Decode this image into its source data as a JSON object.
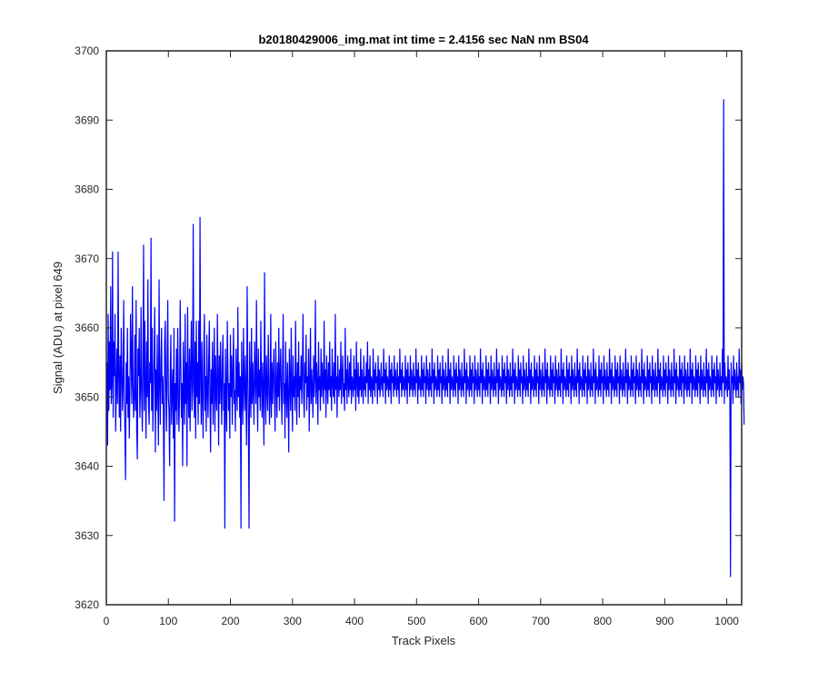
{
  "chart_data": {
    "type": "line",
    "title": "b20180429006_img.mat int time = 2.4156 sec  NaN nm BS04",
    "xlabel": "Track Pixels",
    "ylabel": "Signal (ADU) at pixel 649",
    "xlim": [
      0,
      1024
    ],
    "ylim": [
      3620,
      3700
    ],
    "xticks": [
      0,
      100,
      200,
      300,
      400,
      500,
      600,
      700,
      800,
      900,
      1000
    ],
    "yticks": [
      3620,
      3630,
      3640,
      3650,
      3660,
      3670,
      3680,
      3690,
      3700
    ],
    "grid": false,
    "line_color": "#0000ff",
    "series": [
      {
        "x_start": 1,
        "x_step": 1,
        "values": [
          3655,
          3643,
          3662,
          3648,
          3658,
          3651,
          3666,
          3649,
          3652,
          3671,
          3647,
          3658,
          3653,
          3662,
          3645,
          3651,
          3657,
          3649,
          3671,
          3653,
          3647,
          3656,
          3645,
          3660,
          3654,
          3648,
          3652,
          3664,
          3650,
          3645,
          3638,
          3655,
          3649,
          3660,
          3647,
          3653,
          3644,
          3651,
          3662,
          3656,
          3649,
          3666,
          3652,
          3647,
          3650,
          3659,
          3648,
          3664,
          3645,
          3641,
          3657,
          3653,
          3660,
          3647,
          3651,
          3663,
          3650,
          3645,
          3654,
          3672,
          3648,
          3661,
          3652,
          3644,
          3658,
          3650,
          3667,
          3649,
          3646,
          3655,
          3652,
          3673,
          3648,
          3660,
          3645,
          3651,
          3656,
          3663,
          3642,
          3654,
          3648,
          3659,
          3650,
          3643,
          3667,
          3652,
          3646,
          3655,
          3660,
          3649,
          3653,
          3647,
          3635,
          3658,
          3661,
          3651,
          3645,
          3655,
          3664,
          3650,
          3648,
          3640,
          3653,
          3659,
          3646,
          3651,
          3654,
          3644,
          3660,
          3632,
          3652,
          3648,
          3657,
          3646,
          3660,
          3652,
          3645,
          3650,
          3664,
          3655,
          3647,
          3652,
          3640,
          3658,
          3651,
          3646,
          3662,
          3649,
          3655,
          3640,
          3663,
          3651,
          3647,
          3657,
          3645,
          3654,
          3661,
          3648,
          3651,
          3675,
          3652,
          3647,
          3658,
          3644,
          3661,
          3650,
          3655,
          3646,
          3661,
          3649,
          3676,
          3652,
          3646,
          3658,
          3650,
          3644,
          3656,
          3662,
          3648,
          3653,
          3645,
          3659,
          3651,
          3647,
          3655,
          3661,
          3650,
          3642,
          3654,
          3649,
          3658,
          3646,
          3652,
          3660,
          3645,
          3656,
          3650,
          3648,
          3662,
          3653,
          3643,
          3656,
          3649,
          3658,
          3652,
          3646,
          3655,
          3659,
          3648,
          3652,
          3631,
          3657,
          3650,
          3645,
          3661,
          3654,
          3648,
          3652,
          3644,
          3659,
          3650,
          3656,
          3646,
          3653,
          3660,
          3649,
          3651,
          3645,
          3657,
          3652,
          3648,
          3663,
          3650,
          3655,
          3647,
          3653,
          3631,
          3658,
          3651,
          3646,
          3660,
          3652,
          3648,
          3656,
          3650,
          3643,
          3666,
          3654,
          3646,
          3631,
          3658,
          3652,
          3647,
          3660,
          3649,
          3655,
          3651,
          3646,
          3658,
          3653,
          3649,
          3664,
          3651,
          3645,
          3657,
          3650,
          3654,
          3648,
          3661,
          3652,
          3647,
          3655,
          3650,
          3643,
          3668,
          3652,
          3646,
          3656,
          3651,
          3648,
          3659,
          3653,
          3646,
          3650,
          3662,
          3647,
          3655,
          3649,
          3653,
          3657,
          3650,
          3645,
          3658,
          3652,
          3647,
          3655,
          3650,
          3660,
          3648,
          3653,
          3657,
          3651,
          3646,
          3654,
          3662,
          3649,
          3652,
          3644,
          3658,
          3651,
          3647,
          3655,
          3650,
          3642,
          3657,
          3652,
          3648,
          3660,
          3651,
          3645,
          3656,
          3650,
          3653,
          3648,
          3661,
          3652,
          3646,
          3655,
          3650,
          3658,
          3647,
          3653,
          3651,
          3656,
          3649,
          3654,
          3662,
          3650,
          3647,
          3655,
          3652,
          3659,
          3648,
          3653,
          3650,
          3657,
          3645,
          3652,
          3660,
          3649,
          3654,
          3651,
          3647,
          3656,
          3650,
          3653,
          3664,
          3649,
          3655,
          3652,
          3646,
          3658,
          3651,
          3653,
          3648,
          3657,
          3650,
          3655,
          3652,
          3649,
          3661,
          3651,
          3654,
          3647,
          3656,
          3652,
          3649,
          3655,
          3651,
          3658,
          3650,
          3653,
          3648,
          3657,
          3652,
          3650,
          3655,
          3649,
          3662,
          3651,
          3653,
          3647,
          3656,
          3652,
          3650,
          3654,
          3651,
          3658,
          3649,
          3653,
          3656,
          3650,
          3652,
          3648,
          3660,
          3651,
          3654,
          3649,
          3656,
          3652,
          3650,
          3655,
          3651,
          3657,
          3649,
          3653,
          3652,
          3650,
          3656,
          3651,
          3654,
          3648,
          3658,
          3652,
          3650,
          3655,
          3649,
          3653,
          3651,
          3657,
          3650,
          3654,
          3652,
          3649,
          3656,
          3651,
          3653,
          3650,
          3655,
          3652,
          3658,
          3649,
          3654,
          3651,
          3656,
          3650,
          3653,
          3652,
          3649,
          3657,
          3651,
          3654,
          3650,
          3655,
          3652,
          3653,
          3649,
          3656,
          3651,
          3654,
          3650,
          3652,
          3655,
          3651,
          3653,
          3650,
          3657,
          3652,
          3654,
          3649,
          3655,
          3651,
          3653,
          3652,
          3650,
          3656,
          3651,
          3654,
          3649,
          3655,
          3652,
          3653,
          3650,
          3656,
          3651,
          3654,
          3652,
          3650,
          3655,
          3651,
          3653,
          3649,
          3657,
          3652,
          3654,
          3650,
          3655,
          3651,
          3653,
          3652,
          3650,
          3656,
          3651,
          3654,
          3649,
          3655,
          3652,
          3653,
          3650,
          3656,
          3651,
          3654,
          3652,
          3650,
          3655,
          3651,
          3653,
          3650,
          3657,
          3652,
          3654,
          3649,
          3655,
          3651,
          3653,
          3652,
          3650,
          3656,
          3651,
          3654,
          3650,
          3655,
          3652,
          3653,
          3649,
          3656,
          3651,
          3654,
          3652,
          3650,
          3655,
          3651,
          3653,
          3650,
          3657,
          3652,
          3654,
          3649,
          3655,
          3651,
          3653,
          3652,
          3650,
          3656,
          3651,
          3654,
          3650,
          3655,
          3652,
          3653,
          3649,
          3656,
          3651,
          3654,
          3652,
          3650,
          3655,
          3651,
          3653,
          3650,
          3657,
          3652,
          3654,
          3649,
          3655,
          3651,
          3653,
          3652,
          3650,
          3656,
          3651,
          3654,
          3650,
          3655,
          3652,
          3653,
          3649,
          3656,
          3651,
          3654,
          3652,
          3650,
          3655,
          3651,
          3653,
          3650,
          3657,
          3652,
          3654,
          3649,
          3655,
          3651,
          3653,
          3652,
          3650,
          3656,
          3651,
          3654,
          3650,
          3655,
          3652,
          3653,
          3649,
          3656,
          3651,
          3654,
          3652,
          3650,
          3655,
          3651,
          3653,
          3650,
          3657,
          3652,
          3654,
          3649,
          3655,
          3651,
          3653,
          3652,
          3650,
          3656,
          3651,
          3654,
          3650,
          3655,
          3652,
          3653,
          3649,
          3656,
          3651,
          3654,
          3652,
          3650,
          3655,
          3651,
          3653,
          3650,
          3657,
          3652,
          3654,
          3649,
          3655,
          3651,
          3653,
          3652,
          3650,
          3656,
          3651,
          3654,
          3650,
          3655,
          3652,
          3653,
          3649,
          3656,
          3651,
          3654,
          3652,
          3650,
          3655,
          3651,
          3653,
          3650,
          3657,
          3652,
          3654,
          3649,
          3655,
          3651,
          3653,
          3652,
          3650,
          3656,
          3651,
          3654,
          3650,
          3655,
          3652,
          3653,
          3649,
          3656,
          3651,
          3654,
          3652,
          3650,
          3655,
          3651,
          3653,
          3650,
          3657,
          3652,
          3654,
          3649,
          3655,
          3651,
          3653,
          3652,
          3650,
          3656,
          3651,
          3654,
          3650,
          3655,
          3652,
          3653,
          3649,
          3656,
          3651,
          3654,
          3652,
          3650,
          3655,
          3651,
          3653,
          3650,
          3657,
          3652,
          3654,
          3649,
          3655,
          3651,
          3653,
          3652,
          3650,
          3656,
          3651,
          3654,
          3650,
          3655,
          3652,
          3653,
          3649,
          3656,
          3651,
          3654,
          3652,
          3650,
          3655,
          3651,
          3653,
          3650,
          3657,
          3652,
          3654,
          3649,
          3655,
          3651,
          3653,
          3652,
          3650,
          3656,
          3651,
          3654,
          3650,
          3655,
          3652,
          3653,
          3649,
          3656,
          3651,
          3654,
          3652,
          3650,
          3655,
          3651,
          3653,
          3650,
          3657,
          3652,
          3654,
          3649,
          3655,
          3651,
          3653,
          3652,
          3650,
          3656,
          3651,
          3654,
          3650,
          3655,
          3652,
          3653,
          3649,
          3656,
          3651,
          3654,
          3652,
          3650,
          3655,
          3651,
          3653,
          3650,
          3657,
          3652,
          3654,
          3649,
          3655,
          3651,
          3653,
          3652,
          3650,
          3656,
          3651,
          3654,
          3650,
          3655,
          3652,
          3653,
          3649,
          3656,
          3651,
          3654,
          3652,
          3650,
          3655,
          3651,
          3653,
          3650,
          3657,
          3652,
          3654,
          3649,
          3655,
          3651,
          3653,
          3652,
          3650,
          3656,
          3651,
          3654,
          3650,
          3655,
          3652,
          3653,
          3649,
          3656,
          3651,
          3654,
          3652,
          3650,
          3655,
          3651,
          3653,
          3650,
          3657,
          3652,
          3654,
          3649,
          3655,
          3651,
          3653,
          3652,
          3650,
          3656,
          3651,
          3654,
          3650,
          3655,
          3652,
          3653,
          3649,
          3656,
          3651,
          3654,
          3652,
          3650,
          3655,
          3651,
          3653,
          3650,
          3657,
          3652,
          3654,
          3649,
          3655,
          3651,
          3653,
          3652,
          3650,
          3656,
          3651,
          3654,
          3650,
          3655,
          3652,
          3653,
          3649,
          3656,
          3651,
          3654,
          3652,
          3650,
          3655,
          3651,
          3653,
          3650,
          3657,
          3652,
          3654,
          3649,
          3655,
          3651,
          3653,
          3652,
          3650,
          3656,
          3651,
          3654,
          3650,
          3655,
          3652,
          3653,
          3649,
          3656,
          3651,
          3654,
          3652,
          3650,
          3655,
          3651,
          3653,
          3650,
          3657,
          3652,
          3654,
          3649,
          3655,
          3651,
          3653,
          3652,
          3650,
          3656,
          3651,
          3654,
          3650,
          3655,
          3652,
          3653,
          3649,
          3656,
          3651,
          3654,
          3652,
          3650,
          3655,
          3651,
          3653,
          3650,
          3657,
          3652,
          3654,
          3649,
          3655,
          3651,
          3653,
          3652,
          3650,
          3656,
          3651,
          3654,
          3650,
          3655,
          3652,
          3653,
          3649,
          3656,
          3651,
          3654,
          3652,
          3650,
          3655,
          3651,
          3653,
          3650,
          3657,
          3652,
          3654,
          3649,
          3655,
          3651,
          3653,
          3652,
          3650,
          3656,
          3651,
          3654,
          3650,
          3655,
          3652,
          3653,
          3649,
          3656,
          3651,
          3654,
          3652,
          3650,
          3655,
          3651,
          3653,
          3650,
          3657,
          3652,
          3693,
          3649,
          3655,
          3651,
          3653,
          3652,
          3650,
          3656,
          3651,
          3654,
          3650,
          3624,
          3655,
          3652,
          3653,
          3649,
          3656,
          3651,
          3654,
          3652,
          3650,
          3655,
          3651,
          3653,
          3650,
          3657,
          3652,
          3654,
          3649,
          3655,
          3651,
          3653,
          3652,
          3646
        ]
      }
    ]
  }
}
